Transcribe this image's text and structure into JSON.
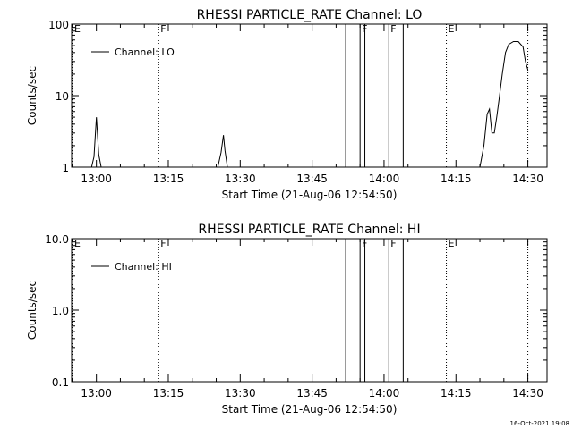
{
  "footer": {
    "timestamp": "16-Oct-2021 19:08"
  },
  "colors": {
    "background": "#ffffff",
    "foreground": "#000000"
  },
  "chart_data": [
    {
      "type": "line",
      "title": "RHESSI PARTICLE_RATE Channel: LO",
      "xlabel": "Start Time (21-Aug-06 12:54:50)",
      "ylabel": "Counts/sec",
      "y_scale": "log",
      "ylim": [
        1,
        100
      ],
      "xlim": [
        "12:54:50",
        "14:34:00"
      ],
      "y_tick_labels": [
        "1",
        "10",
        "100"
      ],
      "x_tick_labels": [
        "13:00",
        "13:15",
        "13:30",
        "13:45",
        "14:00",
        "14:15",
        "14:30"
      ],
      "legend": {
        "position": "top-left",
        "entries": [
          "Channel: LO"
        ]
      },
      "series": [
        {
          "name": "Channel: LO",
          "segments": [
            {
              "x": [
                "12:59:00",
                "12:59:30",
                "13:00:00",
                "13:00:30",
                "13:01:00"
              ],
              "y": [
                1,
                1.4,
                5.0,
                1.5,
                1
              ]
            },
            {
              "x": [
                "13:25:20",
                "13:26:00",
                "13:26:30",
                "13:26:50",
                "13:27:20"
              ],
              "y": [
                1,
                1.6,
                2.8,
                1.7,
                1
              ]
            },
            {
              "x": [
                "14:20:00",
                "14:20:50",
                "14:21:30",
                "14:22:00",
                "14:22:30",
                "14:23:00",
                "14:23:30",
                "14:24:00",
                "14:24:40",
                "14:25:20",
                "14:26:00",
                "14:27:00",
                "14:28:00",
                "14:29:00",
                "14:29:30",
                "14:30:00"
              ],
              "y": [
                1,
                2.0,
                5.5,
                6.5,
                3.0,
                3.0,
                5.0,
                9.0,
                20,
                40,
                52,
                57,
                57,
                48,
                30,
                23
              ]
            }
          ]
        }
      ],
      "annotations": [
        {
          "time": "12:54:50",
          "label": "E",
          "style": "dotted"
        },
        {
          "time": "13:13:00",
          "label": "F",
          "style": "dotted"
        },
        {
          "time": "13:52:00",
          "label": "",
          "style": "solid"
        },
        {
          "time": "13:55:00",
          "label": "F",
          "style": "solid"
        },
        {
          "time": "13:56:00",
          "label": "",
          "style": "solid"
        },
        {
          "time": "14:01:00",
          "label": "F",
          "style": "solid"
        },
        {
          "time": "14:04:00",
          "label": "",
          "style": "solid"
        },
        {
          "time": "14:13:00",
          "label": "E",
          "style": "dotted"
        },
        {
          "time": "14:30:00",
          "label": "",
          "style": "dotted"
        }
      ]
    },
    {
      "type": "line",
      "title": "RHESSI PARTICLE_RATE Channel: HI",
      "xlabel": "Start Time (21-Aug-06 12:54:50)",
      "ylabel": "Counts/sec",
      "y_scale": "log",
      "ylim": [
        0.1,
        10
      ],
      "xlim": [
        "12:54:50",
        "14:34:00"
      ],
      "y_tick_labels": [
        "0.1",
        "1.0",
        "10.0"
      ],
      "x_tick_labels": [
        "13:00",
        "13:15",
        "13:30",
        "13:45",
        "14:00",
        "14:15",
        "14:30"
      ],
      "legend": {
        "position": "top-left",
        "entries": [
          "Channel: HI"
        ]
      },
      "series": [
        {
          "name": "Channel: HI",
          "segments": []
        }
      ],
      "annotations": [
        {
          "time": "12:54:50",
          "label": "E",
          "style": "dotted"
        },
        {
          "time": "13:13:00",
          "label": "F",
          "style": "dotted"
        },
        {
          "time": "13:52:00",
          "label": "",
          "style": "solid"
        },
        {
          "time": "13:55:00",
          "label": "F",
          "style": "solid"
        },
        {
          "time": "13:56:00",
          "label": "",
          "style": "solid"
        },
        {
          "time": "14:01:00",
          "label": "F",
          "style": "solid"
        },
        {
          "time": "14:04:00",
          "label": "",
          "style": "solid"
        },
        {
          "time": "14:13:00",
          "label": "E",
          "style": "dotted"
        },
        {
          "time": "14:30:00",
          "label": "",
          "style": "dotted"
        }
      ]
    }
  ]
}
